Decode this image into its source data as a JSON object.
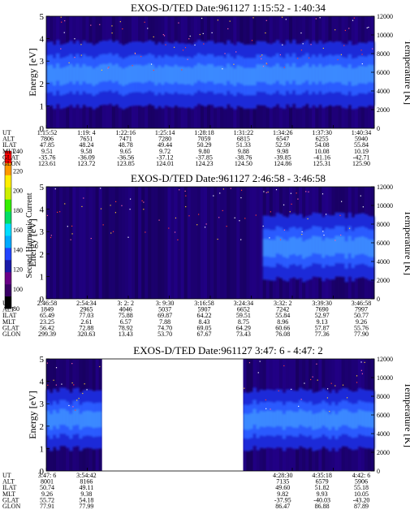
{
  "colorbar": {
    "label": "Second Harmonic Current",
    "ticks": [
      "80",
      "100",
      "120",
      "140",
      "160",
      "180",
      "200",
      "220",
      "240"
    ],
    "colors": [
      "#000000",
      "#3a0066",
      "#6a0088",
      "#1a1aa8",
      "#2244ff",
      "#00aaff",
      "#00ddff",
      "#00dd66",
      "#33ee00",
      "#ccee00",
      "#ffee00",
      "#ff9900",
      "#ff0000"
    ]
  },
  "chart_data": [
    {
      "type": "heatmap",
      "title": "EXOS-D/TED   Date:961127   1:15:52 - 1:40:34",
      "ylabel": "Energy [eV]",
      "y2label": "Temperature [K]",
      "ylim": [
        0,
        5
      ],
      "y2lim": [
        0,
        12000
      ],
      "yticks": [
        "0",
        "1",
        "2",
        "3",
        "4",
        "5"
      ],
      "y2ticks": [
        "0",
        "2000",
        "4000",
        "6000",
        "8000",
        "10000",
        "12000"
      ],
      "band": {
        "center_ev": 2.4,
        "width_ev": 1.1,
        "start_frac": 0.0,
        "end_frac": 1.0
      },
      "gaps": [],
      "rows": [
        {
          "label": "UT",
          "values": [
            "1:15:52",
            "1:19: 4",
            "1:22:16",
            "1:25:14",
            "1:28:18",
            "1:31:22",
            "1:34:26",
            "1:37:30",
            "1:40:34"
          ]
        },
        {
          "label": "ALT",
          "values": [
            "7806",
            "7651",
            "7471",
            "7280",
            "7059",
            "6815",
            "6547",
            "6255",
            "5940"
          ]
        },
        {
          "label": "ILAT",
          "values": [
            "47.85",
            "48.24",
            "48.78",
            "49.44",
            "50.29",
            "51.33",
            "52.59",
            "54.08",
            "55.84"
          ]
        },
        {
          "label": "MLT",
          "values": [
            "9.51",
            "9.58",
            "9.65",
            "9.72",
            "9.80",
            "9.88",
            "9.98",
            "10.08",
            "10.19"
          ]
        },
        {
          "label": "GLAT",
          "values": [
            "-35.76",
            "-36.09",
            "-36.56",
            "-37.12",
            "-37.85",
            "-38.76",
            "-39.85",
            "-41.16",
            "-42.71"
          ]
        },
        {
          "label": "GLON",
          "values": [
            "123.61",
            "123.72",
            "123.85",
            "124.01",
            "124.23",
            "124.50",
            "124.86",
            "125.31",
            "125.90"
          ]
        }
      ]
    },
    {
      "type": "heatmap",
      "title": "EXOS-D/TED   Date:961127   2:46:58 - 3:46:58",
      "ylabel": "Energy [eV]",
      "y2label": "Temperature [K]",
      "ylim": [
        0,
        5
      ],
      "y2lim": [
        0,
        12000
      ],
      "yticks": [
        "0",
        "1",
        "2",
        "3",
        "4",
        "5"
      ],
      "y2ticks": [
        "0",
        "2000",
        "4000",
        "6000",
        "8000",
        "10000",
        "12000"
      ],
      "band": {
        "center_ev": 2.3,
        "width_ev": 1.1,
        "start_frac": 0.66,
        "end_frac": 1.0
      },
      "gaps": [],
      "rows": [
        {
          "label": "UT",
          "values": [
            "2:46:58",
            "2:54:34",
            "3: 2: 2",
            "3: 9:30",
            "3:16:58",
            "3:24:34",
            "3:32: 2",
            "3:39:30",
            "3:46:58"
          ]
        },
        {
          "label": "ALT",
          "values": [
            "1849",
            "2965",
            "4046",
            "5037",
            "5907",
            "6652",
            "7242",
            "7690",
            "7997"
          ]
        },
        {
          "label": "ILAT",
          "values": [
            "65.49",
            "77.03",
            "75.88",
            "69.87",
            "64.22",
            "59.51",
            "55.84",
            "52.97",
            "50.77"
          ]
        },
        {
          "label": "MLT",
          "values": [
            "23.25",
            "2.61",
            "6.57",
            "7.88",
            "8.43",
            "8.75",
            "8.96",
            "9.13",
            "9.26"
          ]
        },
        {
          "label": "GLAT",
          "values": [
            "56.42",
            "72.88",
            "78.92",
            "74.70",
            "69.05",
            "64.29",
            "60.66",
            "57.87",
            "55.76"
          ]
        },
        {
          "label": "GLON",
          "values": [
            "299.39",
            "320.63",
            "13.43",
            "53.70",
            "67.67",
            "73.43",
            "76.08",
            "77.36",
            "77.90"
          ]
        }
      ]
    },
    {
      "type": "heatmap",
      "title": "EXOS-D/TED   Date:961127   3:47: 6 - 4:47: 2",
      "ylabel": "Energy [eV]",
      "y2label": "Temperature [K]",
      "ylim": [
        0,
        5
      ],
      "y2lim": [
        0,
        12000
      ],
      "yticks": [
        "0",
        "1",
        "2",
        "3",
        "4",
        "5"
      ],
      "y2ticks": [
        "0",
        "2000",
        "4000",
        "6000",
        "8000",
        "10000",
        "12000"
      ],
      "band": {
        "center_ev": 2.3,
        "width_ev": 1.0,
        "start_frac": 0.0,
        "end_frac": 1.0
      },
      "gaps": [
        [
          0.17,
          0.6
        ]
      ],
      "rows": [
        {
          "label": "UT",
          "values": [
            "3:47: 6",
            "3:54:42",
            "",
            "",
            "",
            "",
            "4:28:30",
            "4:35:18",
            "4:42: 6"
          ]
        },
        {
          "label": "ALT",
          "values": [
            "8001",
            "8166",
            "",
            "",
            "",
            "",
            "7135",
            "6579",
            "5906"
          ]
        },
        {
          "label": "ILAT",
          "values": [
            "50.74",
            "49.11",
            "",
            "",
            "",
            "",
            "49.60",
            "51.82",
            "55.18"
          ]
        },
        {
          "label": "MLT",
          "values": [
            "9.26",
            "9.38",
            "",
            "",
            "",
            "",
            "9.82",
            "9.93",
            "10.05"
          ]
        },
        {
          "label": "GLAT",
          "values": [
            "55.72",
            "54.18",
            "",
            "",
            "",
            "",
            "-37.95",
            "-40.03",
            "-43.20"
          ]
        },
        {
          "label": "GLON",
          "values": [
            "77.91",
            "77.99",
            "",
            "",
            "",
            "",
            "86.47",
            "86.88",
            "87.89"
          ]
        }
      ]
    }
  ]
}
